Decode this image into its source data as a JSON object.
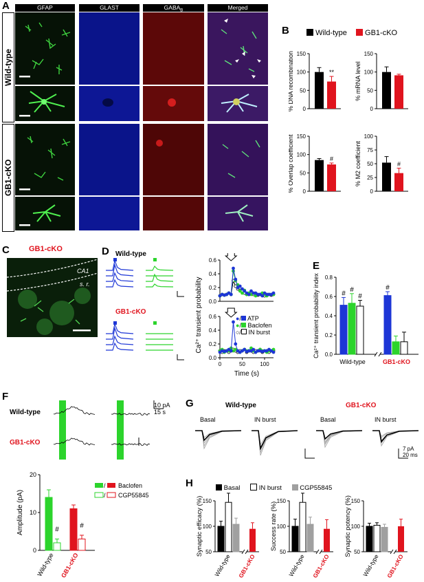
{
  "panels": {
    "A": "A",
    "B": "B",
    "C": "C",
    "D": "D",
    "E": "E",
    "F": "F",
    "G": "G",
    "H": "H"
  },
  "colors": {
    "wt": "#000000",
    "ko": "#e0141e",
    "blue": "#1d36d6",
    "green": "#2cd42c",
    "grey": "#a0a0a0"
  },
  "A": {
    "columns": [
      "GFAP",
      "GLAST",
      "GABA",
      "B",
      "Merged"
    ],
    "rows": [
      "Wild-type",
      "GB1-cKO"
    ]
  },
  "B": {
    "legend_wt": "Wild-type",
    "legend_ko": "GB1-cKO",
    "charts": [
      {
        "ylabel": "% DNA recombination",
        "ymax": 150,
        "ticks": [
          "0",
          "50",
          "100",
          "150"
        ],
        "values": [
          100,
          74
        ],
        "errors": [
          12,
          14
        ],
        "marker": "**"
      },
      {
        "ylabel": "% mRNA level",
        "ymax": 150,
        "ticks": [
          "0",
          "50",
          "100",
          "150"
        ],
        "values": [
          100,
          91
        ],
        "errors": [
          14,
          3
        ],
        "marker": ""
      },
      {
        "ylabel": "% Overlap coefficient",
        "ymax": 150,
        "ticks": [
          "0",
          "50",
          "100",
          "150"
        ],
        "values": [
          85,
          73
        ],
        "errors": [
          4,
          4
        ],
        "marker": "#"
      },
      {
        "ylabel": "% M2 coefficient",
        "ymax": 100,
        "ticks": [
          "0",
          "25",
          "50",
          "75",
          "100"
        ],
        "values": [
          52,
          33
        ],
        "errors": [
          11,
          9
        ],
        "marker": "#"
      }
    ]
  },
  "C": {
    "title": "GB1-cKO",
    "ca1": "CA1",
    "sr": "s. r."
  },
  "D": {
    "wt": "Wild-type",
    "ko": "GB1-cKO",
    "ylabel": "Ca²⁺ transient  probability",
    "xlabel": "Time (s)",
    "xticks": [
      "0",
      "50",
      "100"
    ],
    "yticks": [
      "0.0",
      "0.2",
      "0.4",
      "0.6"
    ],
    "legend": [
      "ATP",
      "Baclofen",
      "IN burst"
    ]
  },
  "E": {
    "ylabel": "Ca²⁺ transient probability index",
    "yticks": [
      "0.0",
      "0.2",
      "0.4",
      "0.6",
      "0.8"
    ],
    "groups": [
      "Wild-type",
      "GB1-cKO"
    ],
    "wt_values": [
      0.51,
      0.53,
      0.5
    ],
    "wt_err": [
      0.08,
      0.1,
      0.06
    ],
    "ko_values": [
      0.61,
      0.13,
      0.13
    ],
    "ko_err": [
      0.04,
      0.06,
      0.1
    ],
    "marker": "#"
  },
  "F": {
    "wt": "Wild-type",
    "ko": "GB1-cKO",
    "scale_pa": "10 pA",
    "scale_s": "15 s",
    "ylabel": "Amplitude (pA)",
    "yticks": [
      "0",
      "10",
      "20"
    ],
    "groups": [
      "Wild-type",
      "GB1-cKO"
    ],
    "legend": [
      "Baclofen",
      "CGP55845"
    ],
    "values": [
      [
        14,
        2
      ],
      [
        11,
        3
      ]
    ],
    "errors": [
      [
        2,
        1
      ],
      [
        1,
        1
      ]
    ],
    "marker": "#"
  },
  "G": {
    "wt": "Wild-type",
    "ko": "GB1-cKO",
    "cond": [
      "Basal",
      "IN burst"
    ],
    "scale_pa": "7 pA",
    "scale_ms": "20 ms"
  },
  "H": {
    "legend": [
      "Basal",
      "IN burst",
      "CGP55845"
    ],
    "groups": [
      "Wild-type",
      "GB1-cKO"
    ],
    "charts": [
      {
        "ylabel": "Synaptic efficacy (%)",
        "wt": [
          100,
          147,
          104
        ],
        "wt_err": [
          10,
          18,
          12
        ],
        "ko": 95,
        "ko_err": 12,
        "marker": "#"
      },
      {
        "ylabel": "Success rate (%)",
        "wt": [
          100,
          147,
          104
        ],
        "wt_err": [
          14,
          18,
          14
        ],
        "ko": 95,
        "ko_err": 18,
        "marker": "#"
      },
      {
        "ylabel": "Synaptic potency (%)",
        "wt": [
          100,
          102,
          98
        ],
        "wt_err": [
          6,
          5,
          6
        ],
        "ko": 100,
        "ko_err": 14,
        "marker": ""
      }
    ],
    "yticks": [
      "50",
      "100",
      "150"
    ]
  }
}
